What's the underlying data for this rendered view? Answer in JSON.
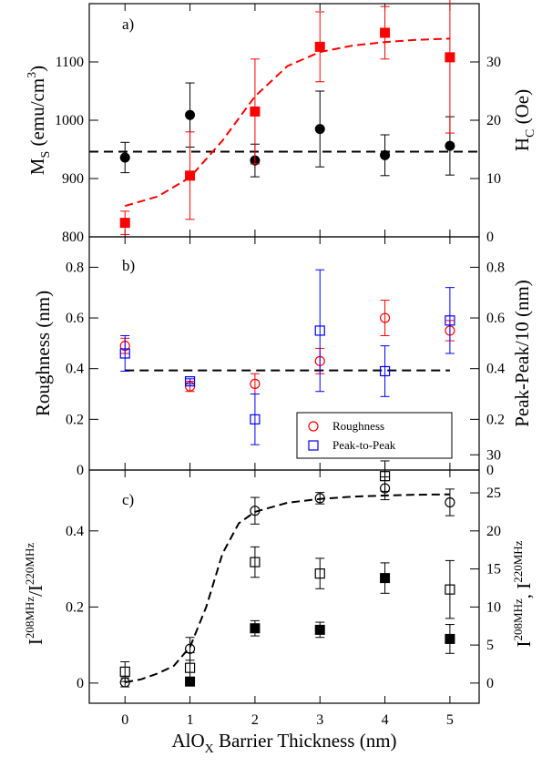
{
  "chart_data": [
    {
      "type": "scatter",
      "panel_label": "a)",
      "ylabel_main": "M",
      "ylabel_sub": "S",
      "ylabel_unit": " (emu/cm",
      "ylabel_sup": "3",
      "ylabel_close": ")",
      "y2label_main": "H",
      "y2label_sub": "C",
      "y2label_unit": " (Oe)",
      "ylim": [
        800,
        1200
      ],
      "y2lim": [
        0,
        40
      ],
      "yticks": [
        "800",
        "900",
        "1000",
        "1100"
      ],
      "y2ticks": [
        "0",
        "10",
        "20",
        "30"
      ],
      "series": [
        {
          "marker": "circle-filled",
          "color": "#000000",
          "axis": "left",
          "x": [
            0,
            1,
            2,
            3,
            4,
            5
          ],
          "y": [
            936,
            1009,
            931,
            985,
            940,
            956
          ],
          "err": [
            26,
            55,
            28,
            65,
            35,
            50
          ]
        },
        {
          "marker": "square-filled",
          "color": "#ff0000",
          "axis": "right",
          "x": [
            0,
            1,
            2,
            3,
            4,
            5
          ],
          "y": [
            2.4,
            10.5,
            21.5,
            32.6,
            35.0,
            30.8
          ],
          "err": [
            2.0,
            7.5,
            9.0,
            6.0,
            4.5,
            13.0
          ]
        }
      ],
      "ref_line": {
        "style": "dashed",
        "color": "#000000",
        "y": 946
      },
      "fit_curve": {
        "style": "dashed",
        "color": "#ff0000",
        "axis": "right",
        "x": [
          0,
          0.5,
          1.0,
          1.5,
          2.0,
          2.5,
          3.0,
          3.5,
          4.0,
          4.5,
          5.0
        ],
        "y": [
          5.3,
          6.9,
          10.2,
          16.5,
          24.1,
          29.3,
          31.7,
          32.8,
          33.4,
          33.8,
          34.0
        ]
      }
    },
    {
      "type": "scatter",
      "panel_label": "b)",
      "ylabel": "Roughness (nm)",
      "y2label": "Peak-Peak/10 (nm)",
      "ylim": [
        0,
        0.92
      ],
      "y2lim": [
        0,
        0.92
      ],
      "yticks": [
        "0",
        "0.2",
        "0.4",
        "0.6",
        "0.8"
      ],
      "y2ticks": [
        "0",
        "0.2",
        "0.4",
        "0.6",
        "0.8"
      ],
      "series": [
        {
          "name": "Roughness",
          "marker": "circle-open",
          "color": "#ff0000",
          "x": [
            0,
            1,
            2,
            3,
            4,
            5
          ],
          "y": [
            0.49,
            0.33,
            0.34,
            0.43,
            0.6,
            0.55
          ],
          "err": [
            0.03,
            0.02,
            0.04,
            0.05,
            0.07,
            0.04
          ]
        },
        {
          "name": "Peak-to-Peak",
          "marker": "square-open",
          "color": "#0000ff",
          "x": [
            0,
            1,
            2,
            3,
            4,
            5
          ],
          "y": [
            0.46,
            0.35,
            0.2,
            0.55,
            0.39,
            0.59
          ],
          "err": [
            0.07,
            0.01,
            0.1,
            0.24,
            0.1,
            0.13
          ]
        }
      ],
      "ref_line": {
        "style": "dashed",
        "color": "#000000",
        "y": 0.393
      },
      "legend": {
        "position": "lower-right"
      }
    },
    {
      "type": "scatter",
      "panel_label": "c)",
      "ylabel_left_base": "I",
      "ylabel_left_sup1": "208MHz",
      "ylabel_left_mid": "/I",
      "ylabel_left_sup2": "220MHz",
      "ylabel_right_base": "I",
      "ylabel_right_sup1": "208MHz",
      "ylabel_right_mid": ", I",
      "ylabel_right_sup2": "220MHz",
      "ylim": [
        -0.053,
        0.56
      ],
      "y2lim": [
        -2.65,
        28
      ],
      "yticks": [
        "0",
        "0.2",
        "0.4"
      ],
      "y2ticks": [
        "0",
        "5",
        "10",
        "15",
        "20",
        "25",
        "30"
      ],
      "series": [
        {
          "marker": "circle-open",
          "color": "#000000",
          "axis": "left",
          "x": [
            0,
            1,
            2,
            3,
            4,
            5
          ],
          "y": [
            0.002,
            0.09,
            0.453,
            0.486,
            0.512,
            0.475
          ],
          "err": [
            0.012,
            0.03,
            0.035,
            0.015,
            0.03,
            0.035
          ]
        },
        {
          "marker": "square-open",
          "color": "#000000",
          "axis": "right",
          "x": [
            0,
            1,
            2,
            3,
            4,
            5
          ],
          "y": [
            1.5,
            2.0,
            15.9,
            14.4,
            27.2,
            12.3
          ],
          "err": [
            1.3,
            2.0,
            2.0,
            2.0,
            2.0,
            3.8
          ]
        },
        {
          "marker": "square-filled",
          "color": "#000000",
          "axis": "right",
          "x": [
            1,
            2,
            3,
            4,
            5
          ],
          "y": [
            0.2,
            7.2,
            7.0,
            13.8,
            5.8
          ],
          "err": [
            0.4,
            1.0,
            1.0,
            2.0,
            1.9
          ]
        }
      ],
      "fit_curve": {
        "style": "dashed",
        "color": "#000000",
        "axis": "left",
        "x": [
          0,
          0.25,
          0.5,
          0.75,
          1.0,
          1.25,
          1.5,
          1.75,
          2.0,
          2.5,
          3.0,
          3.5,
          4.0,
          4.5,
          5.0
        ],
        "y": [
          0.002,
          0.01,
          0.025,
          0.045,
          0.095,
          0.2,
          0.34,
          0.42,
          0.45,
          0.474,
          0.484,
          0.49,
          0.493,
          0.495,
          0.496
        ]
      }
    }
  ],
  "x_axis": {
    "label_base": "AlO",
    "label_sub": "X",
    "label_rest": " Barrier Thickness (nm)",
    "xlim": [
      -0.55,
      5.45
    ],
    "ticks": [
      "0",
      "1",
      "2",
      "3",
      "4",
      "5"
    ]
  }
}
